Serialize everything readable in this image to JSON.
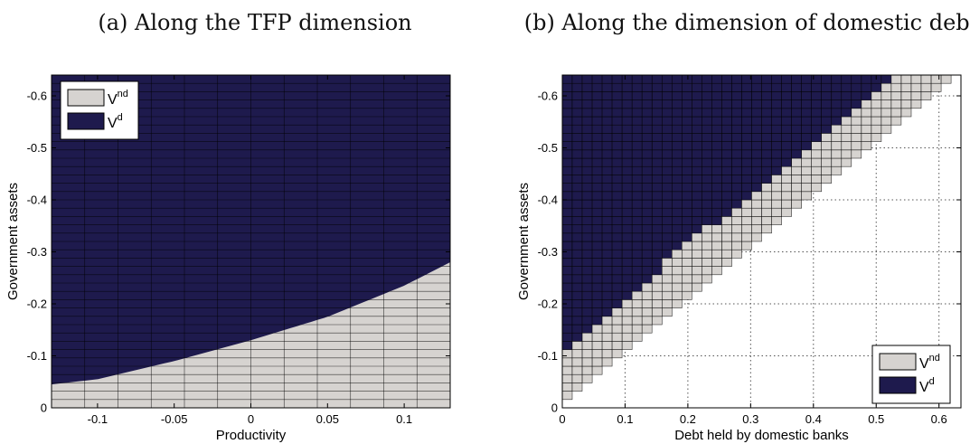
{
  "chart_data": [
    {
      "type": "area",
      "title": "(a) Along the TFP dimension",
      "xlabel": "Productivity",
      "ylabel": "Government assets",
      "xlim": [
        -0.13,
        0.13
      ],
      "ylim": [
        0,
        -0.64
      ],
      "x_ticks": [
        -0.1,
        -0.05,
        0,
        0.05,
        0.1
      ],
      "x_tick_labels": [
        "-0.1",
        "-0.05",
        "0",
        "0.05",
        "0.1"
      ],
      "y_ticks": [
        0,
        -0.1,
        -0.2,
        -0.3,
        -0.4,
        -0.5,
        -0.6
      ],
      "y_tick_labels": [
        "0",
        "-0.1",
        "-0.2",
        "-0.3",
        "-0.4",
        "-0.5",
        "-0.6"
      ],
      "legend_position": "top-left",
      "grid": false,
      "series": [
        {
          "name": "V",
          "sup": "nd",
          "color": "#d6d3d0",
          "role": "no-default region (below boundary)"
        },
        {
          "name": "V",
          "sup": "d",
          "color": "#1e1a4d",
          "role": "default region (above boundary)"
        }
      ],
      "boundary": {
        "x": [
          -0.13,
          -0.1,
          -0.05,
          0.0,
          0.05,
          0.1,
          0.13
        ],
        "y": [
          -0.045,
          -0.055,
          -0.09,
          -0.13,
          -0.175,
          -0.235,
          -0.28
        ]
      }
    },
    {
      "type": "area",
      "title": "(b) Along the dimension of domestic debt",
      "xlabel": "Debt held by domestic banks",
      "ylabel": "Government assets",
      "xlim": [
        0,
        0.635
      ],
      "ylim": [
        0,
        -0.64
      ],
      "x_ticks": [
        0,
        0.1,
        0.2,
        0.3,
        0.4,
        0.5,
        0.6
      ],
      "x_tick_labels": [
        "0",
        "0.1",
        "0.2",
        "0.3",
        "0.4",
        "0.5",
        "0.6"
      ],
      "y_ticks": [
        0,
        -0.1,
        -0.2,
        -0.3,
        -0.4,
        -0.5,
        -0.6
      ],
      "y_tick_labels": [
        "0",
        "-0.1",
        "-0.2",
        "-0.3",
        "-0.4",
        "-0.5",
        "-0.6"
      ],
      "legend_position": "bottom-right",
      "grid": true,
      "series": [
        {
          "name": "V",
          "sup": "nd",
          "color": "#d6d3d0",
          "role": "no-default region (staircase band)"
        },
        {
          "name": "V",
          "sup": "d",
          "color": "#1e1a4d",
          "role": "default region (upper-left)"
        }
      ],
      "default_boundary": {
        "x": [
          0,
          0.2,
          0.4,
          0.5,
          0.525
        ],
        "y": [
          -0.105,
          -0.315,
          -0.51,
          -0.615,
          -0.64
        ]
      },
      "feasibility_edge": {
        "x": [
          0,
          0.1,
          0.2,
          0.3,
          0.4,
          0.5,
          0.62
        ],
        "y": [
          -0.015,
          -0.115,
          -0.215,
          -0.315,
          -0.415,
          -0.515,
          -0.635
        ]
      }
    }
  ]
}
